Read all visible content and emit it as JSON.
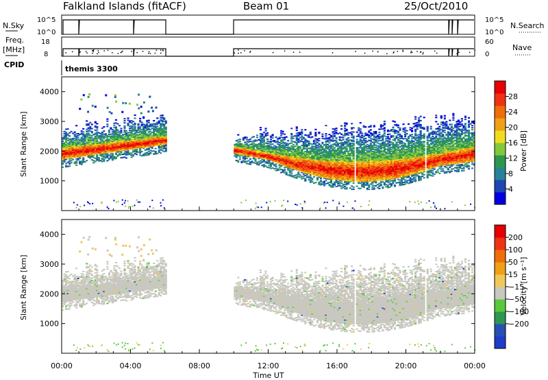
{
  "header": {
    "station": "Falkland Islands (fitACF)",
    "beam": "Beam 01",
    "date": "25/Oct/2010"
  },
  "strips": {
    "nsky_label": "N.Sky",
    "nsky_ticks": [
      "10^5",
      "10^0"
    ],
    "nsearch_label": "N.Search",
    "nsearch_ticks": [
      "10^5",
      "10^0"
    ],
    "freq_label": "Freq.",
    "freq_unit": "[MHz]",
    "freq_ticks": [
      "18",
      "8"
    ],
    "nave_label": "Nave",
    "nave_ticks": [
      "60",
      "0"
    ],
    "cpid_label": "CPID",
    "cpid_value": "themis 3300"
  },
  "chart_data": [
    {
      "type": "heatmap",
      "name": "power",
      "xlabel": "Time UT",
      "ylabel": "Slant Range [km]",
      "xlim": [
        "00:00",
        "24:00"
      ],
      "ylim": [
        0,
        4500
      ],
      "y_ticks": [
        "1000",
        "2000",
        "3000",
        "4000"
      ],
      "x_ticks": [
        "00:00",
        "04:00",
        "08:00",
        "12:00",
        "16:00",
        "20:00",
        "00:00"
      ],
      "colorbar": {
        "label": "Power [dB]",
        "range": [
          0,
          32
        ],
        "ticks": [
          "4",
          "8",
          "12",
          "16",
          "20",
          "24",
          "28"
        ],
        "colors": [
          "#0000e0",
          "#1e46b4",
          "#28829a",
          "#2f9650",
          "#82c83c",
          "#f0dc1e",
          "#f0a014",
          "#f06e0a",
          "#f03214",
          "#e60000"
        ]
      },
      "bands": [
        {
          "t_start": 0.0,
          "t_end": 6.0,
          "core_low_km": [
            1700,
            2200
          ],
          "core_high_km": [
            2100,
            2500
          ],
          "edge_high_km": [
            2700,
            3100
          ],
          "peak_db": 28
        },
        {
          "t_start": 10.0,
          "t_end": 24.0,
          "core_low_km": [
            2200,
            800
          ],
          "core_high_km": [
            1800,
            1700
          ],
          "edge_high_km": [
            2500,
            3100
          ],
          "peak_db": 28
        }
      ]
    },
    {
      "type": "heatmap",
      "name": "velocity",
      "xlabel": "Time UT",
      "ylabel": "Slant Range [km]",
      "xlim": [
        "00:00",
        "24:00"
      ],
      "ylim": [
        0,
        4500
      ],
      "y_ticks": [
        "1000",
        "2000",
        "3000",
        "4000"
      ],
      "x_ticks": [
        "00:00",
        "04:00",
        "08:00",
        "12:00",
        "16:00",
        "20:00",
        "00:00"
      ],
      "colorbar": {
        "label": "Velocity [m s⁻¹]",
        "range": [
          -250,
          250
        ],
        "ticks": [
          "200",
          "100",
          "50",
          "15",
          "−15",
          "−50",
          "−100",
          "−200"
        ],
        "colors": [
          "#1e3cc8",
          "#2850b4",
          "#2f9650",
          "#5ac83c",
          "#c8c8c0",
          "#f0c85a",
          "#f0a014",
          "#f06e0a",
          "#f03214",
          "#e60000"
        ]
      },
      "dominant_value_ms": 0
    }
  ]
}
